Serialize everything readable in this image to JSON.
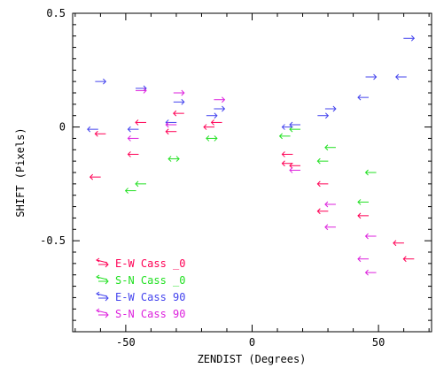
{
  "chart_data": {
    "type": "scatter",
    "title": "",
    "xlabel": "ZENDIST (Degrees)",
    "ylabel": "SHIFT (Pixels)",
    "xlim": [
      -71,
      71
    ],
    "ylim": [
      -0.9,
      0.5
    ],
    "xticks": [
      -50,
      0,
      50
    ],
    "xtick_labels": [
      "-50",
      "0",
      "50"
    ],
    "yticks": [
      -0.5,
      0,
      0.5
    ],
    "ytick_labels": [
      "-0.5",
      "0",
      "0.5"
    ],
    "legend_position": "bottom-left",
    "marker": "arrow",
    "series": [
      {
        "name": "E-W Cass _0",
        "color": "#ff0055",
        "points": [
          {
            "x": -62,
            "y": -0.22,
            "dir": "left"
          },
          {
            "x": -60,
            "y": -0.03,
            "dir": "left"
          },
          {
            "x": -47,
            "y": -0.12,
            "dir": "left"
          },
          {
            "x": -44,
            "y": 0.02,
            "dir": "left"
          },
          {
            "x": -32,
            "y": -0.02,
            "dir": "left"
          },
          {
            "x": -29,
            "y": 0.06,
            "dir": "left"
          },
          {
            "x": -17,
            "y": 0.0,
            "dir": "left"
          },
          {
            "x": -14,
            "y": 0.02,
            "dir": "left"
          },
          {
            "x": 14,
            "y": -0.12,
            "dir": "left"
          },
          {
            "x": 14,
            "y": -0.16,
            "dir": "left"
          },
          {
            "x": 17,
            "y": -0.17,
            "dir": "left"
          },
          {
            "x": 28,
            "y": -0.25,
            "dir": "left"
          },
          {
            "x": 28,
            "y": -0.37,
            "dir": "left"
          },
          {
            "x": 44,
            "y": -0.39,
            "dir": "left"
          },
          {
            "x": 58,
            "y": -0.51,
            "dir": "left"
          },
          {
            "x": 62,
            "y": -0.58,
            "dir": "left"
          }
        ]
      },
      {
        "name": "S-N Cass _0",
        "color": "#22e022",
        "points": [
          {
            "x": -48,
            "y": -0.28,
            "dir": "left"
          },
          {
            "x": -44,
            "y": -0.25,
            "dir": "left"
          },
          {
            "x": -31,
            "y": -0.14,
            "dir": "both"
          },
          {
            "x": -16,
            "y": -0.05,
            "dir": "both"
          },
          {
            "x": 13,
            "y": -0.04,
            "dir": "left"
          },
          {
            "x": 17,
            "y": -0.01,
            "dir": "left"
          },
          {
            "x": 28,
            "y": -0.15,
            "dir": "left"
          },
          {
            "x": 31,
            "y": -0.09,
            "dir": "left"
          },
          {
            "x": 44,
            "y": -0.33,
            "dir": "left"
          },
          {
            "x": 47,
            "y": -0.2,
            "dir": "left"
          }
        ]
      },
      {
        "name": "E-W Cass 90",
        "color": "#4444ee",
        "points": [
          {
            "x": -63,
            "y": -0.01,
            "dir": "left"
          },
          {
            "x": -60,
            "y": 0.2,
            "dir": "right"
          },
          {
            "x": -47,
            "y": -0.01,
            "dir": "left"
          },
          {
            "x": -44,
            "y": 0.17,
            "dir": "right"
          },
          {
            "x": -32,
            "y": 0.02,
            "dir": "left"
          },
          {
            "x": -29,
            "y": 0.11,
            "dir": "right"
          },
          {
            "x": -16,
            "y": 0.05,
            "dir": "right"
          },
          {
            "x": -13,
            "y": 0.08,
            "dir": "right"
          },
          {
            "x": 14,
            "y": 0.0,
            "dir": "left"
          },
          {
            "x": 17,
            "y": 0.01,
            "dir": "left"
          },
          {
            "x": 28,
            "y": 0.05,
            "dir": "right"
          },
          {
            "x": 31,
            "y": 0.08,
            "dir": "right"
          },
          {
            "x": 44,
            "y": 0.13,
            "dir": "left"
          },
          {
            "x": 47,
            "y": 0.22,
            "dir": "right"
          },
          {
            "x": 59,
            "y": 0.22,
            "dir": "left"
          },
          {
            "x": 62,
            "y": 0.39,
            "dir": "right"
          }
        ]
      },
      {
        "name": "S-N Cass 90",
        "color": "#dd22dd",
        "points": [
          {
            "x": -47,
            "y": -0.05,
            "dir": "left"
          },
          {
            "x": -44,
            "y": 0.16,
            "dir": "right"
          },
          {
            "x": -32,
            "y": 0.01,
            "dir": "left"
          },
          {
            "x": -29,
            "y": 0.15,
            "dir": "right"
          },
          {
            "x": -13,
            "y": 0.12,
            "dir": "right"
          },
          {
            "x": 17,
            "y": -0.19,
            "dir": "left"
          },
          {
            "x": 31,
            "y": -0.34,
            "dir": "left"
          },
          {
            "x": 31,
            "y": -0.44,
            "dir": "left"
          },
          {
            "x": 44,
            "y": -0.58,
            "dir": "left"
          },
          {
            "x": 47,
            "y": -0.48,
            "dir": "left"
          },
          {
            "x": 47,
            "y": -0.64,
            "dir": "left"
          }
        ]
      }
    ]
  }
}
